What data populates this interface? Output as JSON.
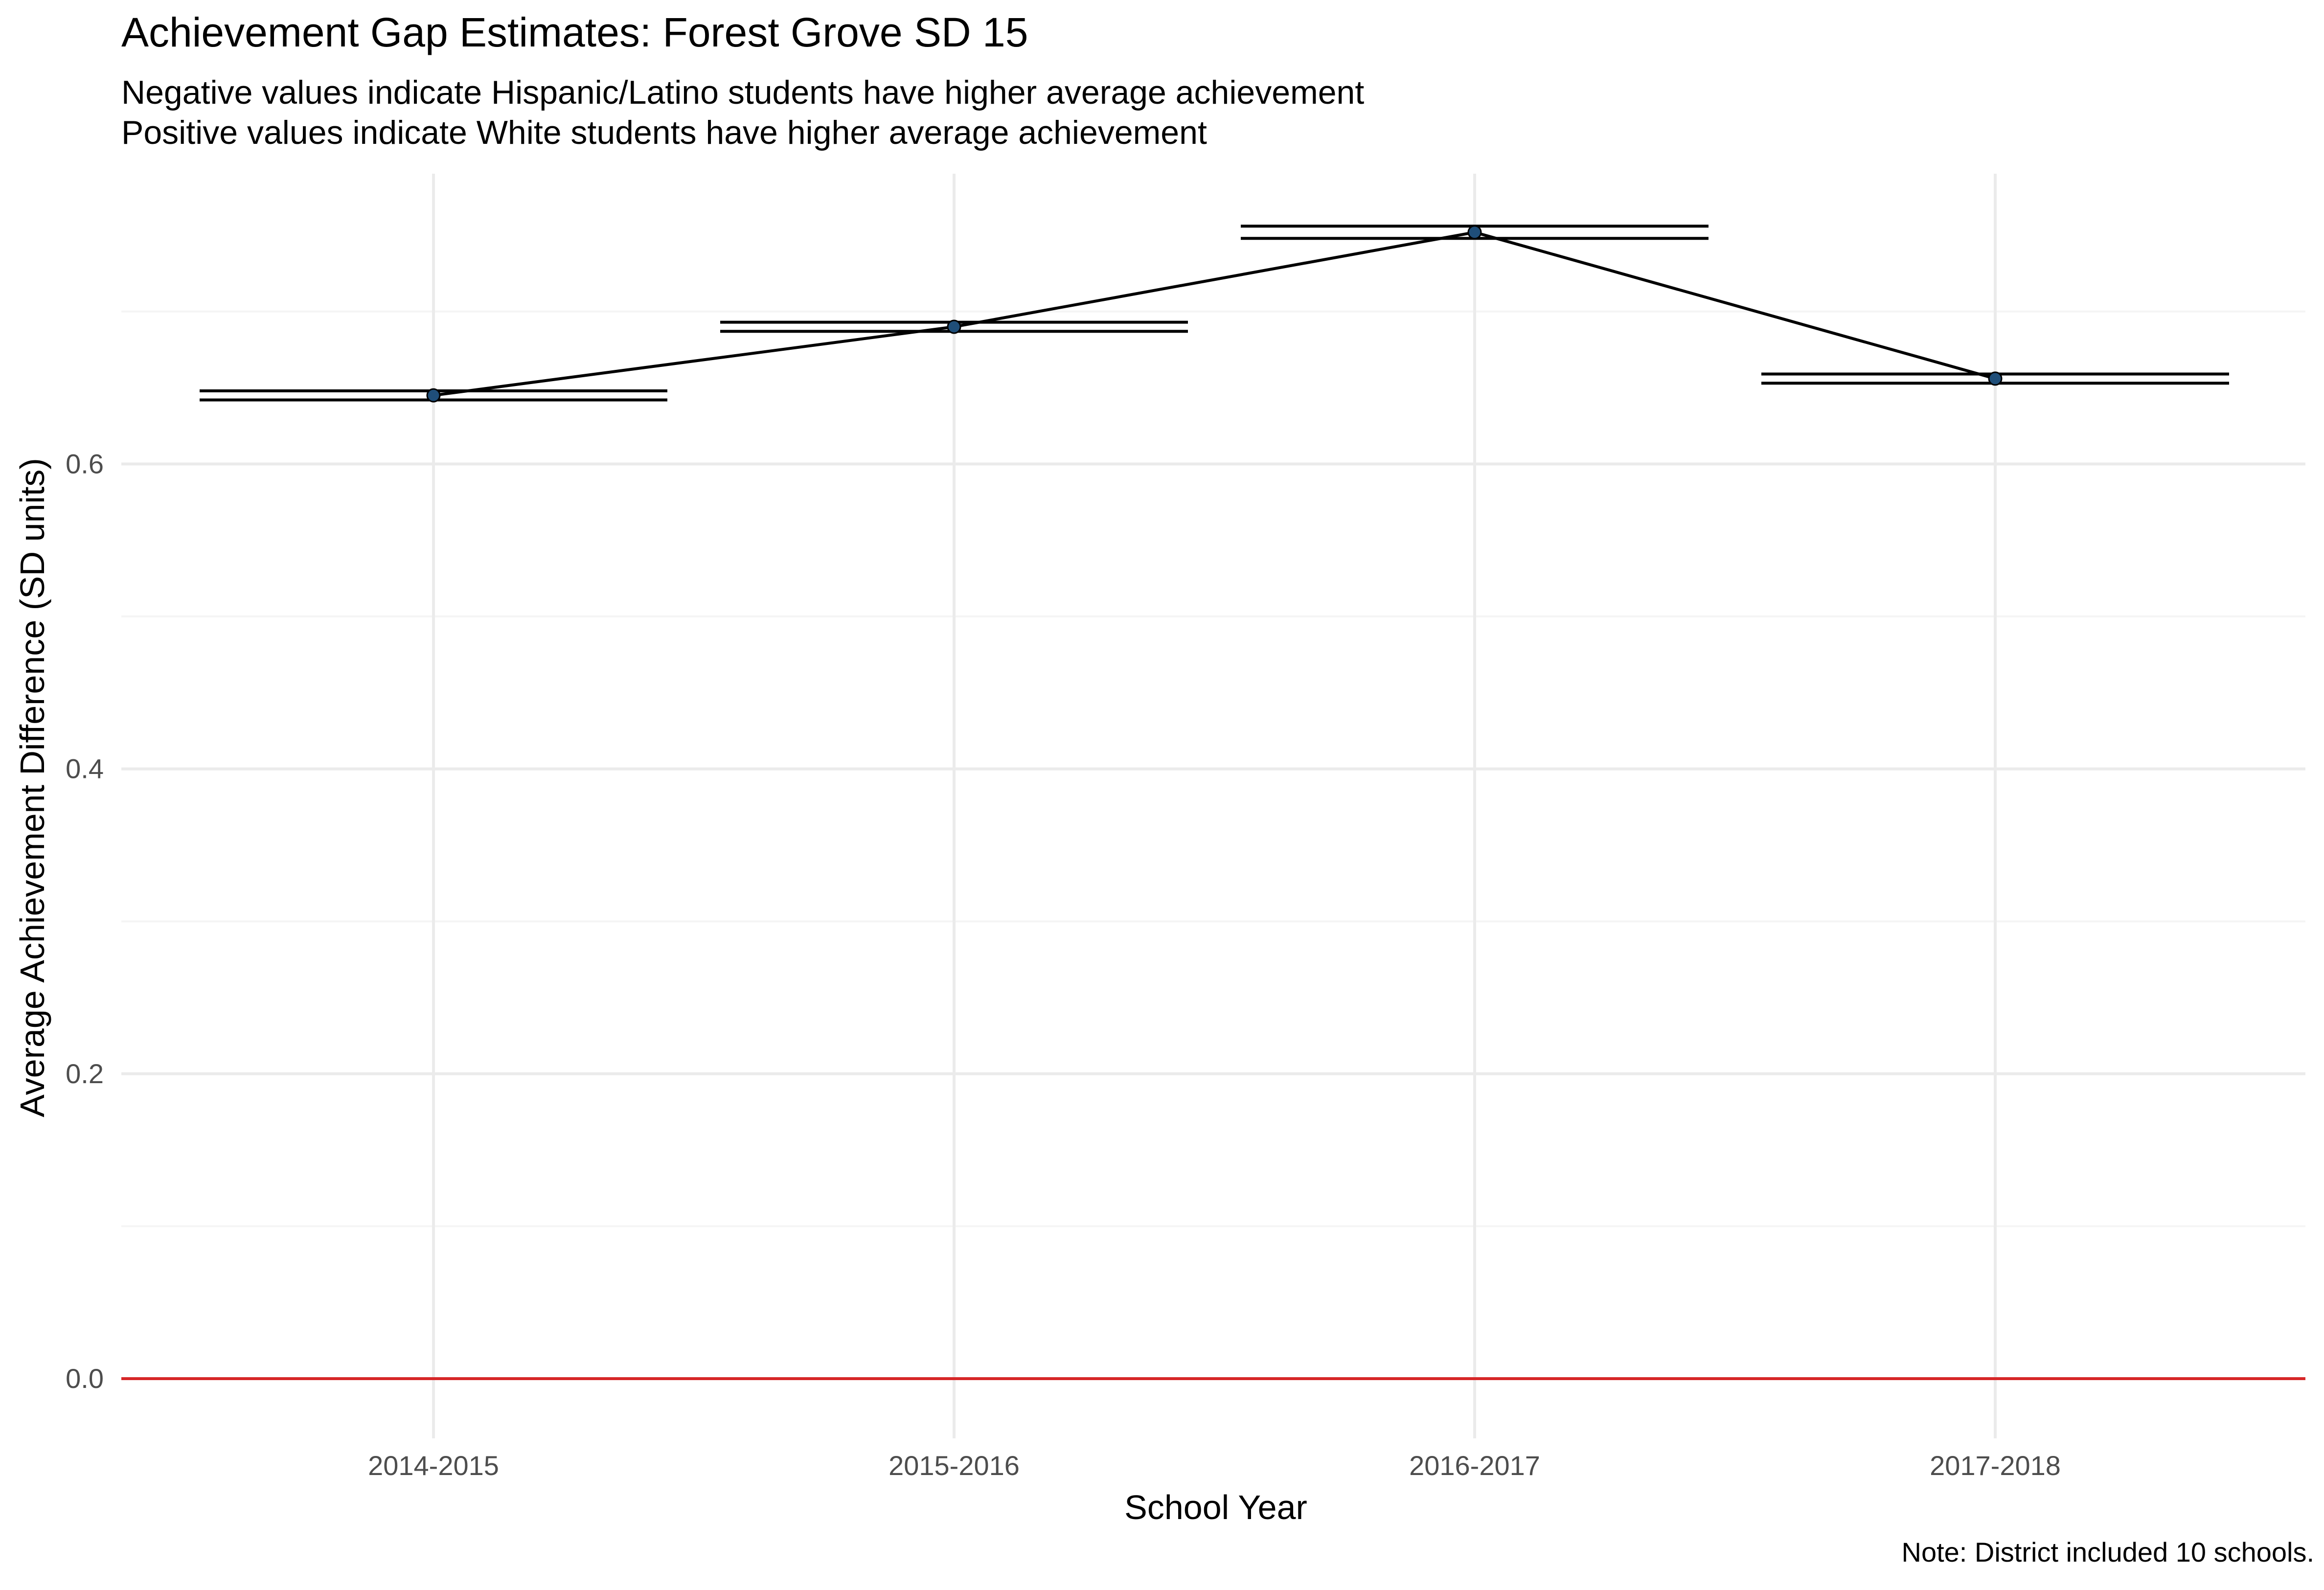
{
  "chart_data": {
    "type": "line",
    "title": "Achievement Gap Estimates: Forest Grove SD 15",
    "subtitle": [
      "Negative values indicate Hispanic/Latino students have higher average achievement",
      "Positive values indicate White students have higher average achievement"
    ],
    "caption": "Note: District included 10 schools.",
    "xlabel": "School Year",
    "ylabel": "Average Achievement Difference (SD units)",
    "categories": [
      "2014-2015",
      "2015-2016",
      "2016-2017",
      "2017-2018"
    ],
    "values": [
      0.645,
      0.69,
      0.752,
      0.656
    ],
    "ci_lower": [
      0.642,
      0.687,
      0.748,
      0.653
    ],
    "ci_upper": [
      0.648,
      0.693,
      0.756,
      0.659
    ],
    "ylim": [
      0,
      0.78
    ],
    "yticks": [
      0.0,
      0.2,
      0.4,
      0.6
    ],
    "yticks_labels": [
      "0.0",
      "0.2",
      "0.4",
      "0.6"
    ],
    "reference_line": 0,
    "grid": true,
    "colors": {
      "point": "#1f4e79",
      "line": "#000000",
      "reference": "#d62728",
      "grid_major": "#ebebeb",
      "grid_minor": "#f5f5f5"
    }
  }
}
